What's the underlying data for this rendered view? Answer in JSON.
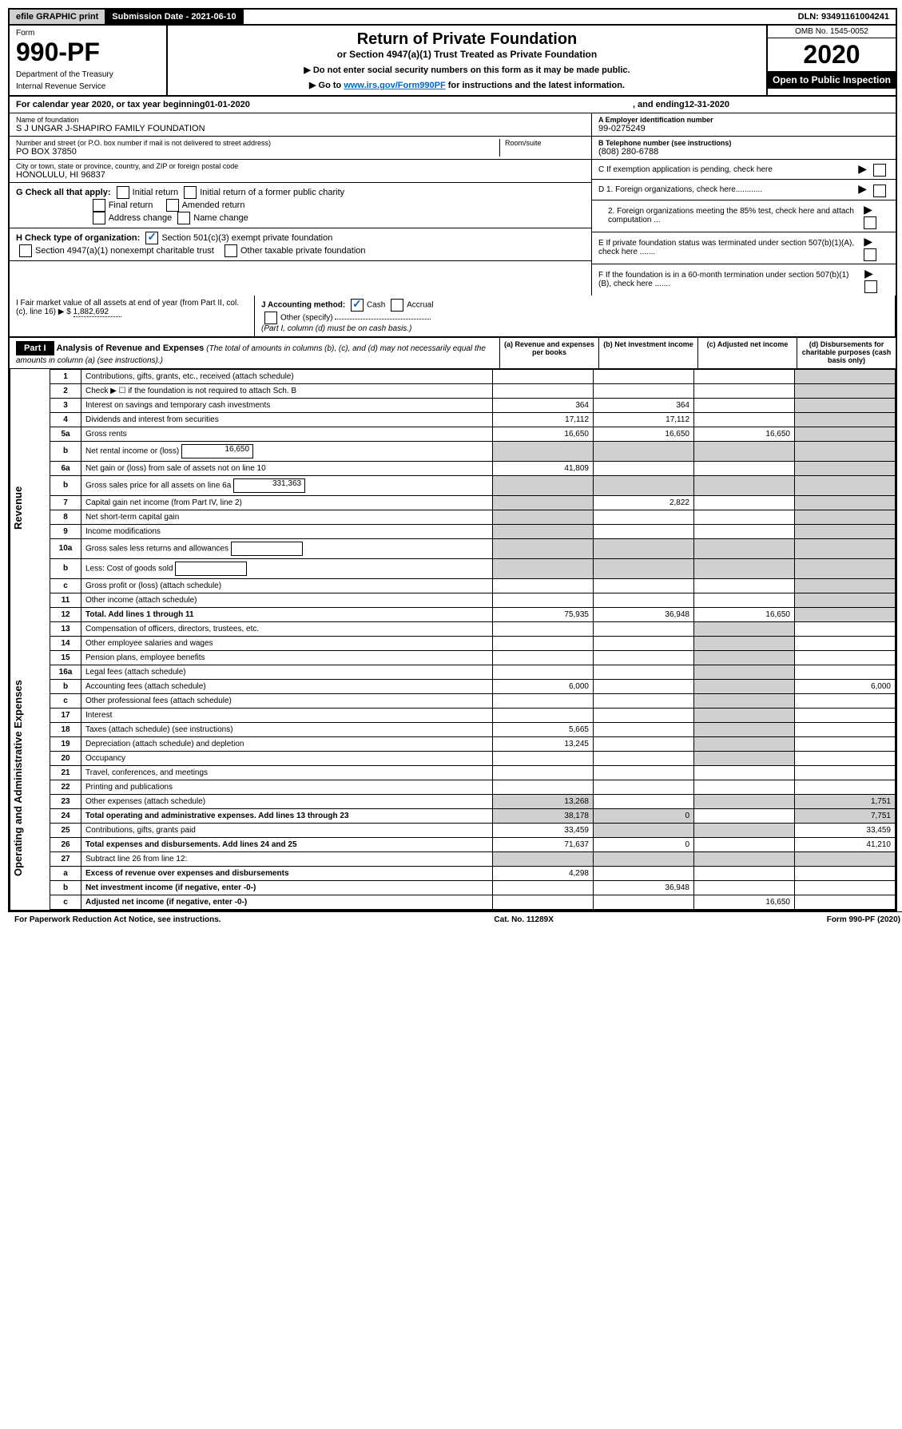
{
  "topbar": {
    "efile": "efile GRAPHIC print",
    "submission": "Submission Date - 2021-06-10",
    "dln": "DLN: 93491161004241"
  },
  "header": {
    "form_label": "Form",
    "form_num": "990-PF",
    "dept1": "Department of the Treasury",
    "dept2": "Internal Revenue Service",
    "title": "Return of Private Foundation",
    "subtitle": "or Section 4947(a)(1) Trust Treated as Private Foundation",
    "instr1": "▶ Do not enter social security numbers on this form as it may be made public.",
    "instr2_pre": "▶ Go to ",
    "instr2_link": "www.irs.gov/Form990PF",
    "instr2_post": " for instructions and the latest information.",
    "omb": "OMB No. 1545-0052",
    "year": "2020",
    "open": "Open to Public Inspection"
  },
  "calyear": {
    "pre": "For calendar year 2020, or tax year beginning ",
    "begin": "01-01-2020",
    "mid": ", and ending ",
    "end": "12-31-2020"
  },
  "info": {
    "name_label": "Name of foundation",
    "name": "S J UNGAR J-SHAPIRO FAMILY FOUNDATION",
    "addr_label": "Number and street (or P.O. box number if mail is not delivered to street address)",
    "addr": "PO BOX 37850",
    "room_label": "Room/suite",
    "city_label": "City or town, state or province, country, and ZIP or foreign postal code",
    "city": "HONOLULU, HI  96837",
    "ein_label": "A Employer identification number",
    "ein": "99-0275249",
    "tel_label": "B Telephone number (see instructions)",
    "tel": "(808) 280-6788",
    "c_label": "C If exemption application is pending, check here",
    "d1": "D 1. Foreign organizations, check here............",
    "d2": "2. Foreign organizations meeting the 85% test, check here and attach computation ...",
    "e_label": "E If private foundation status was terminated under section 507(b)(1)(A), check here .......",
    "f_label": "F If the foundation is in a 60-month termination under section 507(b)(1)(B), check here ......."
  },
  "checks": {
    "g_label": "G Check all that apply:",
    "initial": "Initial return",
    "initial_former": "Initial return of a former public charity",
    "final": "Final return",
    "amended": "Amended return",
    "addr_change": "Address change",
    "name_change": "Name change",
    "h_label": "H Check type of organization:",
    "h1": "Section 501(c)(3) exempt private foundation",
    "h2": "Section 4947(a)(1) nonexempt charitable trust",
    "h3": "Other taxable private foundation",
    "i_label": "I Fair market value of all assets at end of year (from Part II, col. (c), line 16) ▶ $",
    "i_val": "1,882,692",
    "j_label": "J Accounting method:",
    "j_cash": "Cash",
    "j_accrual": "Accrual",
    "j_other": "Other (specify)",
    "j_note": "(Part I, column (d) must be on cash basis.)"
  },
  "part1": {
    "header": "Part I",
    "title": "Analysis of Revenue and Expenses",
    "sub": "(The total of amounts in columns (b), (c), and (d) may not necessarily equal the amounts in column (a) (see instructions).)",
    "col_a": "(a) Revenue and expenses per books",
    "col_b": "(b) Net investment income",
    "col_c": "(c) Adjusted net income",
    "col_d": "(d) Disbursements for charitable purposes (cash basis only)"
  },
  "sidelabels": {
    "revenue": "Revenue",
    "expenses": "Operating and Administrative Expenses"
  },
  "rows": [
    {
      "n": "1",
      "d": "Contributions, gifts, grants, etc., received (attach schedule)"
    },
    {
      "n": "2",
      "d": "Check ▶ ☐ if the foundation is not required to attach Sch. B"
    },
    {
      "n": "3",
      "d": "Interest on savings and temporary cash investments",
      "a": "364",
      "b": "364"
    },
    {
      "n": "4",
      "d": "Dividends and interest from securities",
      "a": "17,112",
      "b": "17,112"
    },
    {
      "n": "5a",
      "d": "Gross rents",
      "a": "16,650",
      "b": "16,650",
      "c": "16,650"
    },
    {
      "n": "b",
      "d": "Net rental income or (loss)",
      "box": "16,650"
    },
    {
      "n": "6a",
      "d": "Net gain or (loss) from sale of assets not on line 10",
      "a": "41,809"
    },
    {
      "n": "b",
      "d": "Gross sales price for all assets on line 6a",
      "box": "331,363"
    },
    {
      "n": "7",
      "d": "Capital gain net income (from Part IV, line 2)",
      "b": "2,822"
    },
    {
      "n": "8",
      "d": "Net short-term capital gain"
    },
    {
      "n": "9",
      "d": "Income modifications"
    },
    {
      "n": "10a",
      "d": "Gross sales less returns and allowances",
      "box": ""
    },
    {
      "n": "b",
      "d": "Less: Cost of goods sold",
      "box": ""
    },
    {
      "n": "c",
      "d": "Gross profit or (loss) (attach schedule)"
    },
    {
      "n": "11",
      "d": "Other income (attach schedule)"
    },
    {
      "n": "12",
      "d": "Total. Add lines 1 through 11",
      "a": "75,935",
      "b": "36,948",
      "c": "16,650",
      "bold": true
    },
    {
      "n": "13",
      "d": "Compensation of officers, directors, trustees, etc."
    },
    {
      "n": "14",
      "d": "Other employee salaries and wages"
    },
    {
      "n": "15",
      "d": "Pension plans, employee benefits"
    },
    {
      "n": "16a",
      "d": "Legal fees (attach schedule)"
    },
    {
      "n": "b",
      "d": "Accounting fees (attach schedule)",
      "a": "6,000",
      "dd": "6,000"
    },
    {
      "n": "c",
      "d": "Other professional fees (attach schedule)"
    },
    {
      "n": "17",
      "d": "Interest"
    },
    {
      "n": "18",
      "d": "Taxes (attach schedule) (see instructions)",
      "a": "5,665"
    },
    {
      "n": "19",
      "d": "Depreciation (attach schedule) and depletion",
      "a": "13,245"
    },
    {
      "n": "20",
      "d": "Occupancy"
    },
    {
      "n": "21",
      "d": "Travel, conferences, and meetings"
    },
    {
      "n": "22",
      "d": "Printing and publications"
    },
    {
      "n": "23",
      "d": "Other expenses (attach schedule)",
      "a": "13,268",
      "dd": "1,751"
    },
    {
      "n": "24",
      "d": "Total operating and administrative expenses. Add lines 13 through 23",
      "a": "38,178",
      "b": "0",
      "dd": "7,751",
      "bold": true
    },
    {
      "n": "25",
      "d": "Contributions, gifts, grants paid",
      "a": "33,459",
      "dd": "33,459"
    },
    {
      "n": "26",
      "d": "Total expenses and disbursements. Add lines 24 and 25",
      "a": "71,637",
      "b": "0",
      "dd": "41,210",
      "bold": true
    },
    {
      "n": "27",
      "d": "Subtract line 26 from line 12:"
    },
    {
      "n": "a",
      "d": "Excess of revenue over expenses and disbursements",
      "a": "4,298",
      "bold": true
    },
    {
      "n": "b",
      "d": "Net investment income (if negative, enter -0-)",
      "b": "36,948",
      "bold": true
    },
    {
      "n": "c",
      "d": "Adjusted net income (if negative, enter -0-)",
      "c": "16,650",
      "bold": true
    }
  ],
  "footer": {
    "left": "For Paperwork Reduction Act Notice, see instructions.",
    "mid": "Cat. No. 11289X",
    "right": "Form 990-PF (2020)"
  }
}
